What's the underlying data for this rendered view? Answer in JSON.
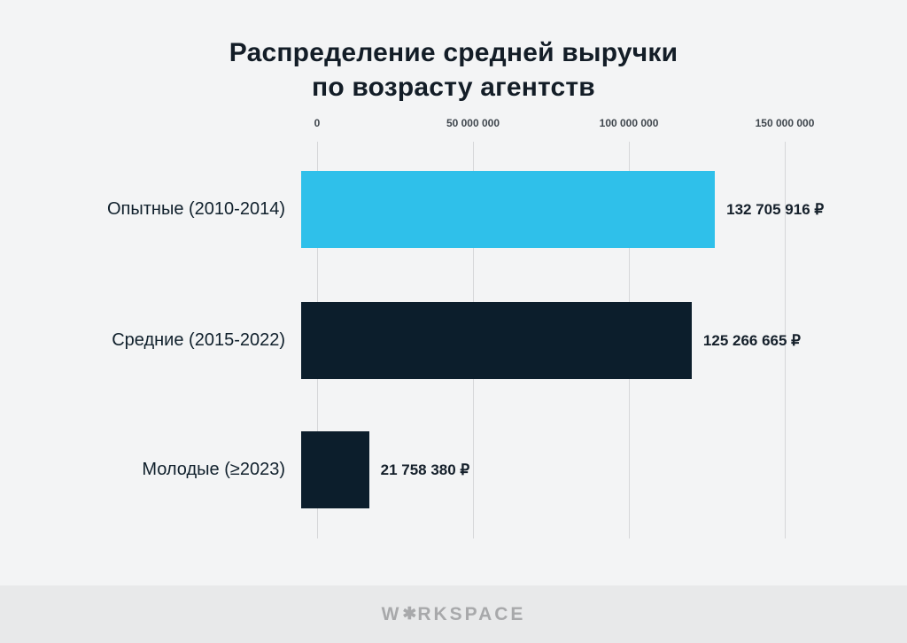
{
  "title": {
    "line1": "Распределение средней выручки",
    "line2": "по возрасту агентств"
  },
  "chart_data": {
    "type": "bar",
    "orientation": "horizontal",
    "title": "Распределение средней выручки по возрасту агентств",
    "categories": [
      "Опытные (2010-2014)",
      "Средние (2015-2022)",
      "Молодые (≥2023)"
    ],
    "values": [
      132705916,
      125266665,
      21758380
    ],
    "value_labels": [
      "132 705 916 ₽",
      "125 266 665 ₽",
      "21 758 380 ₽"
    ],
    "bar_colors": [
      "#2fc0ea",
      "#0c1e2c",
      "#0c1e2c"
    ],
    "x_ticks": [
      0,
      50000000,
      100000000,
      150000000
    ],
    "x_tick_labels": [
      "0",
      "50 000 000",
      "100 000 000",
      "150 000 000"
    ],
    "xlim": [
      0,
      150000000
    ],
    "grid": true,
    "legend": false
  },
  "colors": {
    "background": "#f3f4f5",
    "accent_cyan": "#2fc0ea",
    "accent_dark": "#0c1e2c",
    "gridline": "#d6d7d9",
    "footer_band": "#e8e9ea",
    "footer_text": "#a8a9ab"
  },
  "footer": {
    "brand": "WORKSPACE",
    "brand_prefix": "W",
    "brand_suffix": "RKSPACE",
    "logo_star": "✱"
  }
}
